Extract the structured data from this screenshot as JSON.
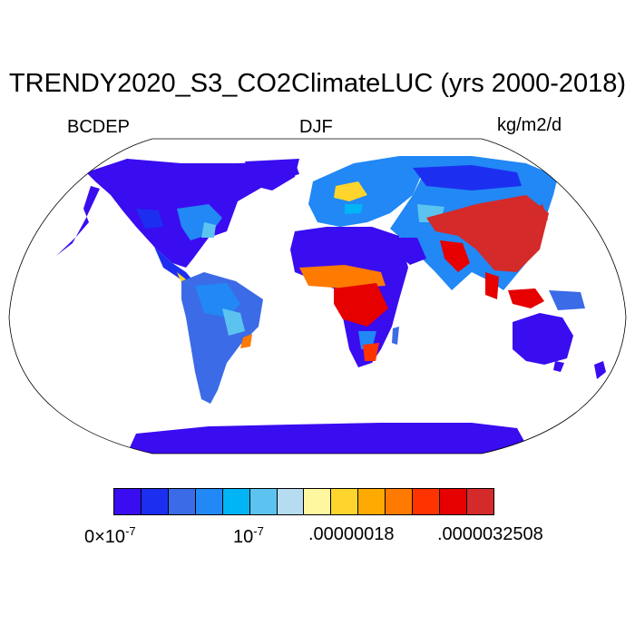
{
  "title": "TRENDY2020_S3_CO2ClimateLUC (yrs 2000-2018)",
  "variable_label": "BCDEP",
  "season_label": "DJF",
  "units_label": "kg/m2/d",
  "colors": {
    "ocean": "#ffffff",
    "outline": "#000000",
    "scale": [
      "#3a0cf0",
      "#1c2ff0",
      "#3b6be6",
      "#2188f5",
      "#00b4f5",
      "#5cc3f0",
      "#b5dcf0",
      "#fff7a0",
      "#ffd52d",
      "#ffaa00",
      "#ff7a00",
      "#ff3300",
      "#e60000",
      "#d42a2a"
    ]
  },
  "colorbar": {
    "labels": [
      {
        "base": "0×10",
        "exp": "-7"
      },
      {
        "base": "10",
        "exp": "-7"
      },
      {
        "base": ".00000018",
        "exp": ""
      },
      {
        "base": ".0000032508",
        "exp": ""
      }
    ]
  }
}
